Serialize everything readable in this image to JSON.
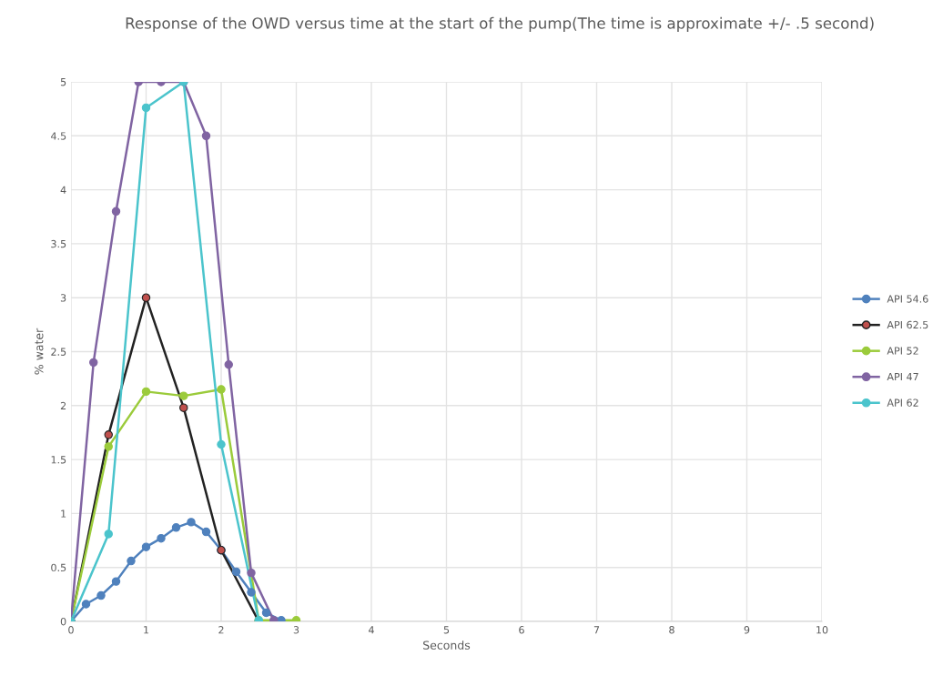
{
  "chart_data": {
    "type": "line",
    "title": "Response of the OWD versus time at the start of the pump(The time is approximate +/- .5 second)",
    "xlabel": "Seconds",
    "ylabel": "% water",
    "xlim": [
      0,
      10
    ],
    "xticks": [
      0,
      1,
      2,
      3,
      4,
      5,
      6,
      7,
      8,
      9,
      10
    ],
    "ylim": [
      0,
      5
    ],
    "yticks": [
      0,
      0.5,
      1,
      1.5,
      2,
      2.5,
      3,
      3.5,
      4,
      4.5,
      5
    ],
    "grid": true,
    "legend": "right",
    "marker": "circle",
    "line_style": "solid",
    "series": [
      {
        "name": "API 54.6",
        "color": "#4f81bd",
        "x": [
          0,
          0.2,
          0.4,
          0.6,
          0.8,
          1.0,
          1.2,
          1.4,
          1.6,
          1.8,
          2.0,
          2.2,
          2.4,
          2.6,
          2.8
        ],
        "values": [
          0,
          0.16,
          0.24,
          0.37,
          0.56,
          0.69,
          0.77,
          0.87,
          0.92,
          0.83,
          0.66,
          0.46,
          0.27,
          0.08,
          0.01
        ]
      },
      {
        "name": "API 62.5",
        "color": "#222222",
        "colors": [
          "#c0504d",
          "#c0504d",
          "#c0504d",
          "#c0504d",
          "#c0504d",
          "#c0504d"
        ],
        "x": [
          0,
          0.5,
          1,
          1.5,
          2,
          2.5
        ],
        "values": [
          0,
          1.73,
          3.0,
          1.98,
          0.66,
          0.0
        ]
      },
      {
        "name": "API 52",
        "color": "#9bcb3b",
        "x": [
          0,
          0.5,
          1,
          1.5,
          2,
          2.5,
          3
        ],
        "values": [
          0,
          1.62,
          2.13,
          2.09,
          2.15,
          0.01,
          0.01
        ]
      },
      {
        "name": "API 47",
        "color": "#8064a2",
        "x": [
          0,
          0.3,
          0.6,
          0.9,
          1.2,
          1.5,
          1.8,
          2.1,
          2.4,
          2.7
        ],
        "values": [
          0,
          2.4,
          3.8,
          5,
          5,
          5,
          4.5,
          2.38,
          0.45,
          0.01
        ]
      },
      {
        "name": "API 62",
        "color": "#4bc4cc",
        "x": [
          0,
          0.5,
          1,
          1.5,
          2,
          2.5
        ],
        "values": [
          0,
          0.81,
          4.76,
          5,
          1.64,
          0.01
        ]
      }
    ]
  }
}
